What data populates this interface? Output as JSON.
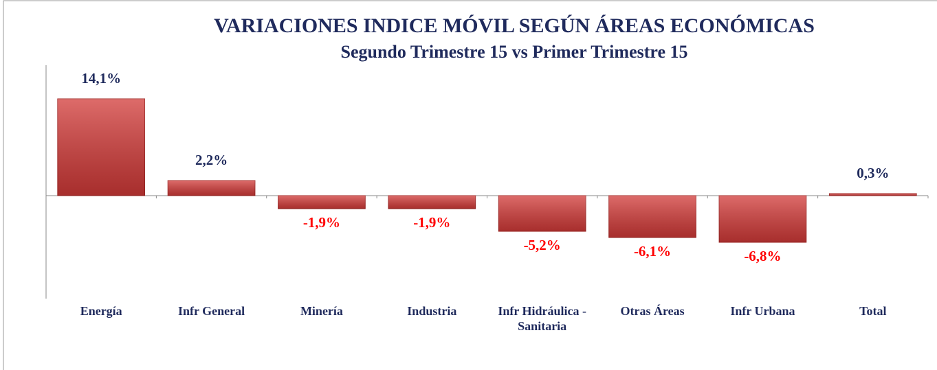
{
  "chart_data": {
    "type": "bar",
    "title": "VARIACIONES INDICE MÓVIL SEGÚN ÁREAS ECONÓMICAS",
    "subtitle": "Segundo Trimestre 15 vs Primer Trimestre 15",
    "categories": [
      "Energía",
      "Infr General",
      "Minería",
      "Industria",
      "Infr Hidráulica - Sanitaria",
      "Otras Áreas",
      "Infr Urbana",
      "Total"
    ],
    "values": [
      14.1,
      2.2,
      -1.9,
      -1.9,
      -5.2,
      -6.1,
      -6.8,
      0.3
    ],
    "value_labels": [
      "14,1%",
      "2,2%",
      "-1,9%",
      "-1,9%",
      "-5,2%",
      "-6,1%",
      "-6,8%",
      "0,3%"
    ],
    "color": "#d23a38",
    "value_label_color": "#1f2a5c",
    "negative_value_label_color": "#ff0000",
    "ylim": [
      -15,
      19
    ]
  }
}
